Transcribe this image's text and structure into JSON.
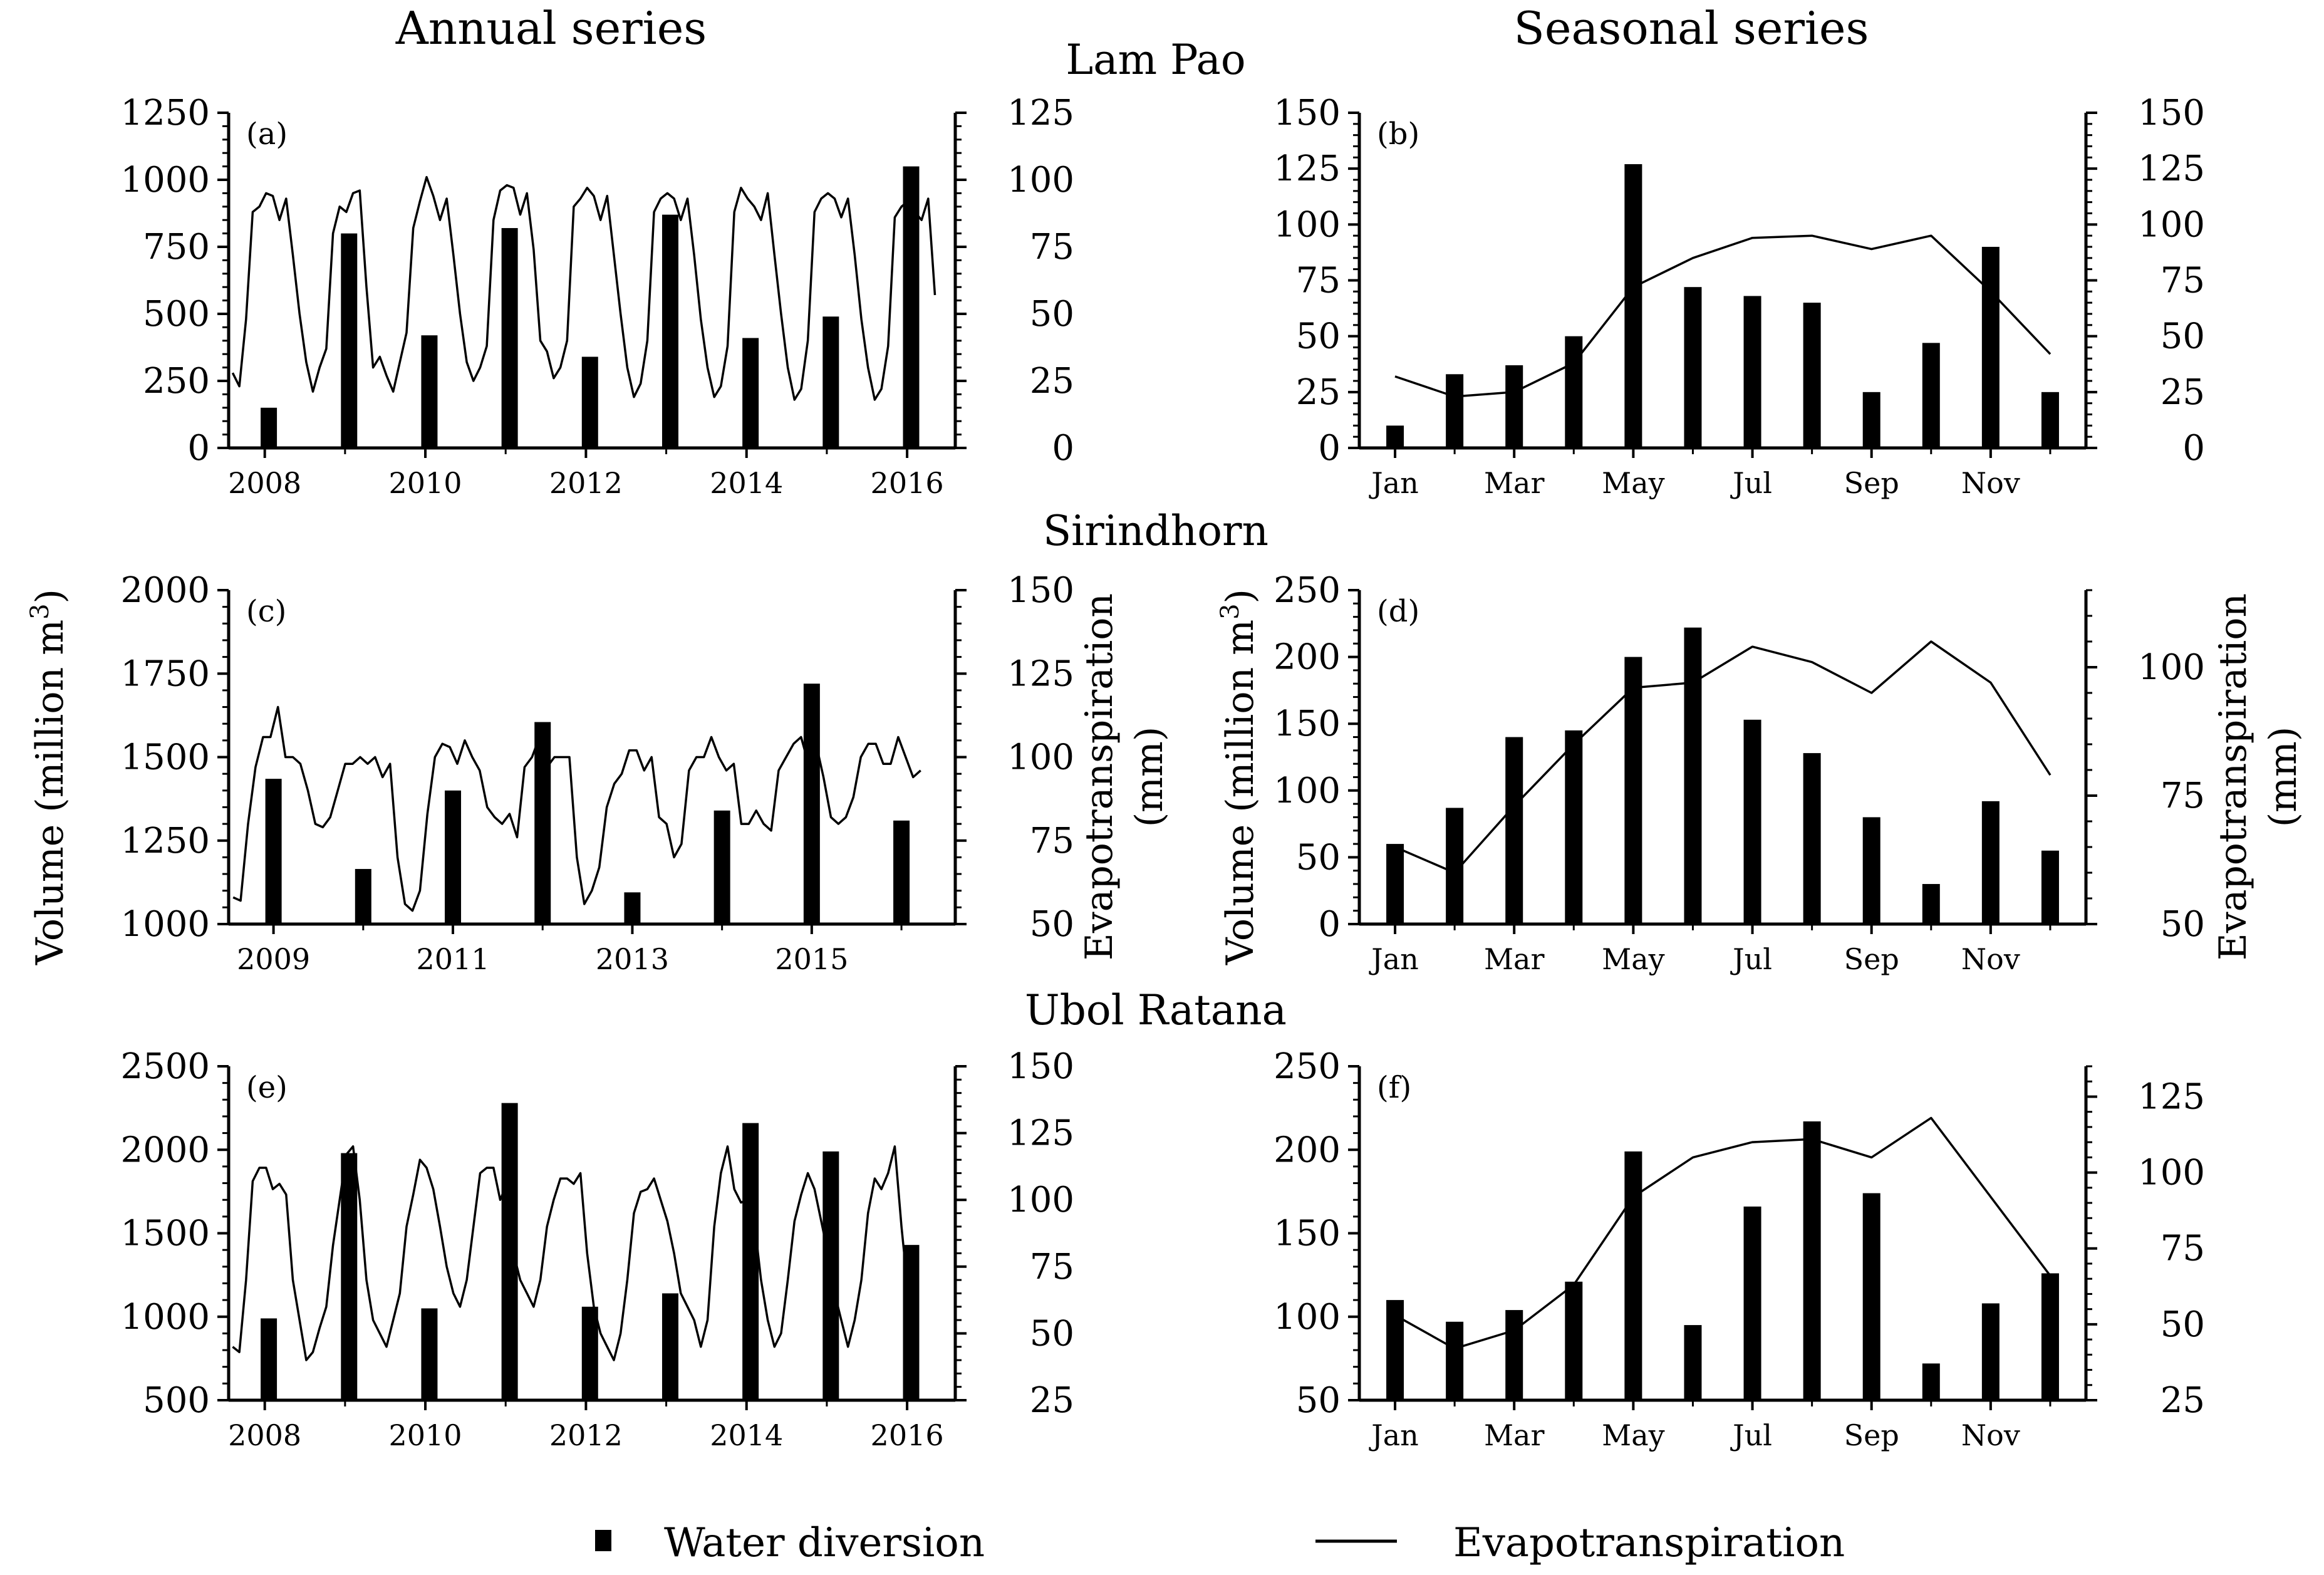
{
  "headers": {
    "annual": "Annual series",
    "seasonal": "Seasonal series"
  },
  "sites": [
    "Lam Pao",
    "Sirindhorn",
    "Ubol Ratana"
  ],
  "axis_titles": {
    "volume_main": "Volume (million m",
    "volume_sup": "3",
    "volume_close": ")",
    "et_line1": "Evapotranspiration",
    "et_line2": "(mm)"
  },
  "legend": {
    "bar_label": "Water diversion",
    "line_label": "Evapotranspiration"
  },
  "colors": {
    "ink": "#000000",
    "background": "#ffffff"
  },
  "chart_data": [
    {
      "id": "a",
      "panel_label": "(a)",
      "type": "bar+line",
      "site": "Lam Pao",
      "series_kind": "annual",
      "left_axis": {
        "label": "Volume (million m3)",
        "range": [
          0,
          1250
        ],
        "ticks": [
          0,
          250,
          500,
          750,
          1000,
          1250
        ],
        "tick_labels": [
          "0",
          "250",
          "500",
          "750",
          "1000",
          "1250"
        ]
      },
      "right_axis": {
        "label": "Evapotranspiration (mm)",
        "range": [
          0,
          125
        ],
        "ticks": [
          0,
          25,
          50,
          75,
          100,
          125
        ],
        "tick_labels": [
          "0",
          "25",
          "50",
          "75",
          "100",
          "125"
        ]
      },
      "x_range": [
        2007.55,
        2016.6
      ],
      "x_ticks": [
        2008,
        2010,
        2012,
        2014,
        2016
      ],
      "x_tick_labels": [
        "2008",
        "2010",
        "2012",
        "2014",
        "2016"
      ],
      "bars": {
        "name": "Water diversion",
        "x": [
          2008.05,
          2009.05,
          2010.05,
          2011.05,
          2012.05,
          2013.05,
          2014.05,
          2015.05,
          2016.05
        ],
        "values": [
          150,
          800,
          420,
          820,
          340,
          870,
          410,
          490,
          1050
        ]
      },
      "line": {
        "name": "Evapotranspiration",
        "start": 2007.6,
        "step": 0.0833,
        "values": [
          28,
          23,
          48,
          88,
          90,
          95,
          94,
          85,
          93,
          72,
          50,
          32,
          21,
          30,
          37,
          80,
          90,
          88,
          95,
          96,
          60,
          30,
          34,
          27,
          21,
          32,
          43,
          82,
          92,
          101,
          94,
          85,
          93,
          72,
          50,
          32,
          25,
          30,
          38,
          85,
          96,
          98,
          97,
          87,
          95,
          74,
          40,
          36,
          26,
          30,
          40,
          90,
          93,
          97,
          94,
          85,
          94,
          72,
          50,
          30,
          19,
          24,
          40,
          88,
          93,
          95,
          93,
          85,
          93,
          72,
          48,
          30,
          19,
          23,
          38,
          88,
          97,
          93,
          90,
          85,
          95,
          72,
          50,
          30,
          18,
          22,
          40,
          88,
          93,
          95,
          93,
          86,
          93,
          72,
          48,
          30,
          18,
          22,
          38,
          86,
          90,
          92,
          88,
          85,
          93,
          57
        ]
      }
    },
    {
      "id": "b",
      "panel_label": "(b)",
      "type": "bar+line",
      "site": "Lam Pao",
      "series_kind": "seasonal",
      "left_axis": {
        "label": "Volume (million m3)",
        "range": [
          0,
          150
        ],
        "ticks": [
          0,
          25,
          50,
          75,
          100,
          125,
          150
        ],
        "tick_labels": [
          "0",
          "25",
          "50",
          "75",
          "100",
          "125",
          "150"
        ]
      },
      "right_axis": {
        "label": "Evapotranspiration (mm)",
        "range": [
          0,
          150
        ],
        "ticks": [
          0,
          25,
          50,
          75,
          100,
          125,
          150
        ],
        "tick_labels": [
          "0",
          "25",
          "50",
          "75",
          "100",
          "125",
          "150"
        ]
      },
      "x_range": [
        0.4,
        12.6
      ],
      "x_ticks": [
        1,
        3,
        5,
        7,
        9,
        11
      ],
      "x_tick_labels": [
        "Jan",
        "Mar",
        "May",
        "Jul",
        "Sep",
        "Nov"
      ],
      "bars": {
        "name": "Water diversion",
        "x": [
          1,
          2,
          3,
          4,
          5,
          6,
          7,
          8,
          9,
          10,
          11,
          12
        ],
        "values": [
          10,
          33,
          37,
          50,
          127,
          72,
          68,
          65,
          25,
          47,
          90,
          25
        ]
      },
      "line": {
        "name": "Evapotranspiration",
        "x": [
          1,
          2,
          3,
          4,
          5,
          6,
          7,
          8,
          9,
          10,
          11,
          12
        ],
        "values": [
          32,
          23,
          25,
          38,
          72,
          85,
          94,
          95,
          89,
          95,
          70,
          42
        ]
      }
    },
    {
      "id": "c",
      "panel_label": "(c)",
      "type": "bar+line",
      "site": "Sirindhorn",
      "series_kind": "annual",
      "left_axis": {
        "label": "Volume (million m3)",
        "range": [
          1000,
          2000
        ],
        "ticks": [
          1000,
          1250,
          1500,
          1750,
          2000
        ],
        "tick_labels": [
          "1000",
          "1250",
          "1500",
          "1750",
          "2000"
        ]
      },
      "right_axis": {
        "label": "Evapotranspiration (mm)",
        "range": [
          50,
          150
        ],
        "ticks": [
          50,
          75,
          100,
          125,
          150
        ],
        "tick_labels": [
          "50",
          "75",
          "100",
          "125",
          "150"
        ]
      },
      "x_range": [
        2008.5,
        2016.6
      ],
      "x_ticks": [
        2009,
        2011,
        2013,
        2015
      ],
      "x_tick_labels": [
        "2009",
        "2011",
        "2013",
        "2015"
      ],
      "bars": {
        "name": "Water diversion",
        "x": [
          2009,
          2010,
          2011,
          2012,
          2013,
          2014,
          2015,
          2016
        ],
        "values": [
          1435,
          1165,
          1400,
          1605,
          1095,
          1340,
          1720,
          1310
        ]
      },
      "line": {
        "name": "Evapotranspiration",
        "start": 2008.55,
        "step": 0.0833,
        "values": [
          58,
          57,
          80,
          97,
          106,
          106,
          115,
          100,
          100,
          98,
          90,
          80,
          79,
          82,
          90,
          98,
          98,
          100,
          98,
          100,
          94,
          98,
          70,
          56,
          54,
          60,
          83,
          100,
          104,
          103,
          98,
          105,
          100,
          96,
          85,
          82,
          80,
          83,
          76,
          97,
          100,
          106,
          97,
          100,
          100,
          100,
          70,
          56,
          60,
          67,
          85,
          92,
          95,
          102,
          102,
          96,
          100,
          82,
          80,
          70,
          74,
          96,
          100,
          100,
          106,
          100,
          96,
          98,
          80,
          80,
          84,
          80,
          78,
          96,
          100,
          104,
          106,
          98,
          104,
          94,
          82,
          80,
          82,
          88,
          100,
          104,
          104,
          98,
          98,
          106,
          100,
          94,
          96
        ]
      }
    },
    {
      "id": "d",
      "panel_label": "(d)",
      "type": "bar+line",
      "site": "Sirindhorn",
      "series_kind": "seasonal",
      "left_axis": {
        "label": "Volume (million m3)",
        "range": [
          0,
          250
        ],
        "ticks": [
          0,
          50,
          100,
          150,
          200,
          250
        ],
        "tick_labels": [
          "0",
          "50",
          "100",
          "150",
          "200",
          "250"
        ]
      },
      "right_axis": {
        "label": "Evapotranspiration (mm)",
        "range": [
          50,
          115
        ],
        "ticks": [
          50,
          75,
          100
        ],
        "tick_labels": [
          "50",
          "75",
          "100"
        ]
      },
      "x_range": [
        0.4,
        12.6
      ],
      "x_ticks": [
        1,
        3,
        5,
        7,
        9,
        11
      ],
      "x_tick_labels": [
        "Jan",
        "Mar",
        "May",
        "Jul",
        "Sep",
        "Nov"
      ],
      "bars": {
        "name": "Water diversion",
        "x": [
          1,
          2,
          3,
          4,
          5,
          6,
          7,
          8,
          9,
          10,
          11,
          12
        ],
        "values": [
          60,
          87,
          140,
          145,
          200,
          222,
          153,
          128,
          80,
          30,
          92,
          55
        ]
      },
      "line": {
        "name": "Evapotranspiration",
        "x": [
          1,
          2,
          3,
          4,
          5,
          6,
          7,
          8,
          9,
          10,
          11,
          12
        ],
        "values": [
          65,
          60,
          73,
          85,
          96,
          97,
          104,
          101,
          95,
          105,
          97,
          79
        ]
      }
    },
    {
      "id": "e",
      "panel_label": "(e)",
      "type": "bar+line",
      "site": "Ubol Ratana",
      "series_kind": "annual",
      "left_axis": {
        "label": "Volume (million m3)",
        "range": [
          500,
          2500
        ],
        "ticks": [
          500,
          1000,
          1500,
          2000,
          2500
        ],
        "tick_labels": [
          "500",
          "1000",
          "1500",
          "2000",
          "2500"
        ]
      },
      "right_axis": {
        "label": "Evapotranspiration (mm)",
        "range": [
          25,
          150
        ],
        "ticks": [
          25,
          50,
          75,
          100,
          125,
          150
        ],
        "tick_labels": [
          "25",
          "50",
          "75",
          "100",
          "125",
          "150"
        ]
      },
      "x_range": [
        2007.55,
        2016.6
      ],
      "x_ticks": [
        2008,
        2010,
        2012,
        2014,
        2016
      ],
      "x_tick_labels": [
        "2008",
        "2010",
        "2012",
        "2014",
        "2016"
      ],
      "bars": {
        "name": "Water diversion",
        "x": [
          2008.05,
          2009.05,
          2010.05,
          2011.05,
          2012.05,
          2013.05,
          2014.05,
          2015.05,
          2016.05
        ],
        "values": [
          990,
          1980,
          1050,
          2280,
          1060,
          1140,
          2160,
          1990,
          1430
        ]
      },
      "line": {
        "name": "Evapotranspiration",
        "start": 2007.6,
        "step": 0.0833,
        "values": [
          45,
          43,
          70,
          107,
          112,
          112,
          104,
          106,
          102,
          70,
          55,
          40,
          43,
          52,
          60,
          83,
          100,
          117,
          120,
          100,
          70,
          55,
          50,
          45,
          55,
          65,
          90,
          102,
          115,
          112,
          104,
          90,
          75,
          65,
          60,
          70,
          90,
          110,
          112,
          112,
          100,
          106,
          80,
          70,
          65,
          60,
          70,
          90,
          100,
          108,
          108,
          106,
          110,
          80,
          60,
          50,
          45,
          40,
          50,
          70,
          95,
          103,
          104,
          108,
          100,
          92,
          80,
          65,
          60,
          55,
          45,
          55,
          90,
          110,
          120,
          104,
          99,
          100,
          92,
          70,
          55,
          45,
          50,
          70,
          92,
          102,
          110,
          104,
          92,
          80,
          65,
          55,
          45,
          55,
          70,
          95,
          108,
          104,
          110,
          120,
          90,
          65
        ]
      }
    },
    {
      "id": "f",
      "panel_label": "(f)",
      "type": "bar+line",
      "site": "Ubol Ratana",
      "series_kind": "seasonal",
      "left_axis": {
        "label": "Volume (million m3)",
        "range": [
          50,
          250
        ],
        "ticks": [
          50,
          100,
          150,
          200,
          250
        ],
        "tick_labels": [
          "50",
          "100",
          "150",
          "200",
          "250"
        ]
      },
      "right_axis": {
        "label": "Evapotranspiration (mm)",
        "range": [
          25,
          135
        ],
        "ticks": [
          25,
          50,
          75,
          100,
          125
        ],
        "tick_labels": [
          "25",
          "50",
          "75",
          "100",
          "125"
        ]
      },
      "x_range": [
        0.4,
        12.6
      ],
      "x_ticks": [
        1,
        3,
        5,
        7,
        9,
        11
      ],
      "x_tick_labels": [
        "Jan",
        "Mar",
        "May",
        "Jul",
        "Sep",
        "Nov"
      ],
      "bars": {
        "name": "Water diversion",
        "x": [
          1,
          2,
          3,
          4,
          5,
          6,
          7,
          8,
          9,
          10,
          11,
          12
        ],
        "values": [
          110,
          97,
          104,
          121,
          199,
          95,
          166,
          217,
          174,
          72,
          108,
          126
        ]
      },
      "line": {
        "name": "Evapotranspiration",
        "x": [
          1,
          2,
          3,
          4,
          5,
          6,
          7,
          8,
          9,
          10,
          11,
          12
        ],
        "values": [
          53,
          42,
          48,
          63,
          92,
          105,
          110,
          111,
          105,
          118,
          92,
          66
        ]
      }
    }
  ]
}
